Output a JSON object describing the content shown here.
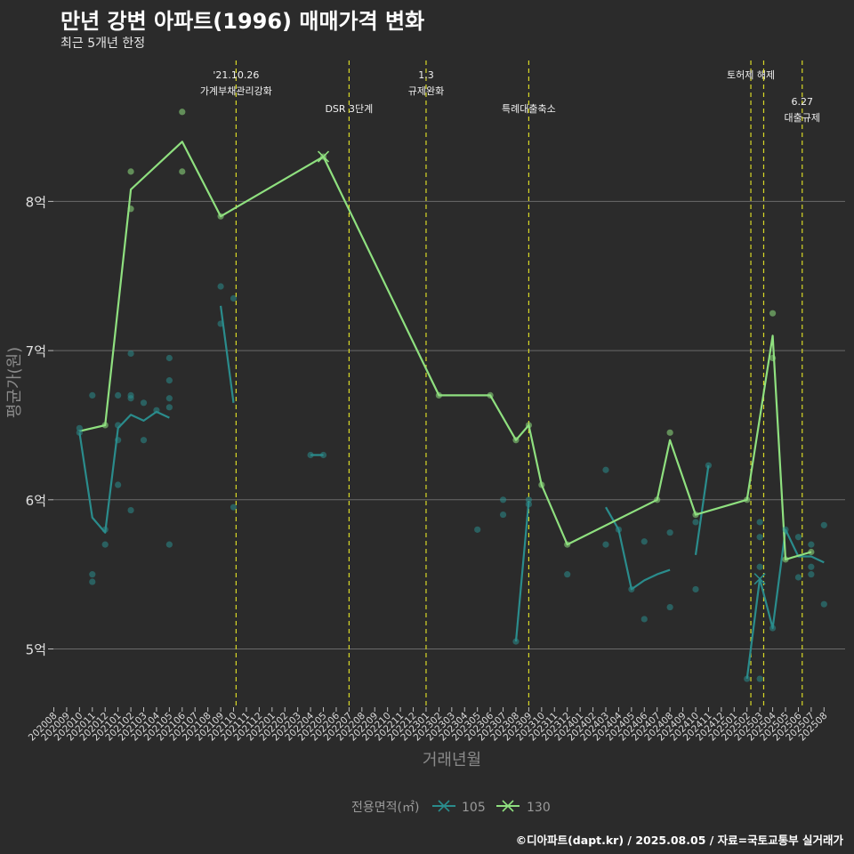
{
  "header": {
    "title": "만년 강변 아파트(1996) 매매가격 변화",
    "subtitle": "최근 5개년 한정"
  },
  "footer": {
    "credit": "©디아파트(dapt.kr) / 2025.08.05 / 자료=국토교통부 실거래가"
  },
  "colors": {
    "background": "#2b2b2b",
    "grid": "#6a6a6a",
    "series_105": "#2a8c8c",
    "series_130": "#8fe07f",
    "event_line": "#d9d926"
  },
  "chart_data": {
    "type": "line",
    "xlabel": "거래년월",
    "ylabel": "평균가(원)",
    "legend_title": "전용면적(㎡)",
    "legend_position": "bottom",
    "grid": true,
    "ylim": [
      4.6,
      8.95
    ],
    "y_ticks": [
      {
        "value": 5,
        "label": "5억"
      },
      {
        "value": 6,
        "label": "6억"
      },
      {
        "value": 7,
        "label": "7억"
      },
      {
        "value": 8,
        "label": "8억"
      }
    ],
    "categories": [
      "202008",
      "202009",
      "202010",
      "202011",
      "202012",
      "202101",
      "202102",
      "202103",
      "202104",
      "202105",
      "202106",
      "202107",
      "202108",
      "202109",
      "202110",
      "202111",
      "202112",
      "202201",
      "202202",
      "202203",
      "202204",
      "202205",
      "202206",
      "202207",
      "202208",
      "202209",
      "202210",
      "202211",
      "202212",
      "202301",
      "202302",
      "202303",
      "202304",
      "202305",
      "202306",
      "202307",
      "202308",
      "202309",
      "202310",
      "202311",
      "202312",
      "202401",
      "202402",
      "202403",
      "202404",
      "202405",
      "202406",
      "202407",
      "202408",
      "202409",
      "202410",
      "202411",
      "202412",
      "202501",
      "202502",
      "202503",
      "202504",
      "202505",
      "202506",
      "202507",
      "202508"
    ],
    "events": [
      {
        "x": "202110.2",
        "label": "'21.10.26\n가계부채관리강화",
        "row": 0
      },
      {
        "x": "202207",
        "label": "DSR 3단계",
        "row": 1
      },
      {
        "x": "202301",
        "label": "1.3\n규제완화",
        "row": 0
      },
      {
        "x": "202309",
        "label": "특례대출축소",
        "row": 1
      },
      {
        "x": "202502.3",
        "label": "토허제 해제",
        "row": 0
      },
      {
        "x": "202503.3",
        "label": "",
        "row": 0
      },
      {
        "x": "202506.3",
        "label": "6.27\n대출규제",
        "row": 2
      }
    ],
    "series": [
      {
        "name": "105",
        "line": [
          [
            "202010",
            6.45
          ],
          [
            "202011",
            5.88
          ],
          [
            "202012",
            5.78
          ],
          [
            "202101",
            6.48
          ],
          [
            "202102",
            6.57
          ],
          [
            "202103",
            6.53
          ],
          [
            "202104",
            6.59
          ],
          [
            "202105",
            6.55
          ],
          null,
          [
            "202109",
            7.3
          ],
          [
            "202110",
            6.65
          ],
          null,
          [
            "202204",
            6.3
          ],
          [
            "202205",
            6.3
          ],
          null,
          [
            "202308",
            5.05
          ],
          [
            "202309",
            5.99
          ],
          null,
          [
            "202403",
            5.95
          ],
          [
            "202404",
            5.8
          ],
          [
            "202405",
            5.4
          ],
          [
            "202406",
            5.46
          ],
          [
            "202407",
            5.5
          ],
          [
            "202408",
            5.53
          ],
          null,
          [
            "202410",
            5.63
          ],
          [
            "202411",
            6.23
          ],
          null,
          [
            "202502",
            4.8
          ],
          [
            "202503",
            5.47
          ],
          [
            "202504",
            5.14
          ],
          [
            "202505",
            5.8
          ],
          [
            "202506",
            5.62
          ],
          [
            "202507",
            5.62
          ],
          [
            "202508",
            5.58
          ]
        ],
        "points": [
          [
            "202010",
            6.48
          ],
          [
            "202010",
            6.45
          ],
          [
            "202011",
            6.7
          ],
          [
            "202011",
            5.5
          ],
          [
            "202011",
            5.45
          ],
          [
            "202012",
            5.8
          ],
          [
            "202012",
            5.7
          ],
          [
            "202101",
            6.7
          ],
          [
            "202101",
            6.5
          ],
          [
            "202101",
            6.4
          ],
          [
            "202101",
            6.1
          ],
          [
            "202102",
            6.98
          ],
          [
            "202102",
            6.7
          ],
          [
            "202102",
            6.68
          ],
          [
            "202102",
            5.93
          ],
          [
            "202103",
            6.65
          ],
          [
            "202103",
            6.4
          ],
          [
            "202104",
            6.6
          ],
          [
            "202105",
            6.95
          ],
          [
            "202105",
            6.8
          ],
          [
            "202105",
            6.68
          ],
          [
            "202105",
            6.62
          ],
          [
            "202105",
            5.7
          ],
          [
            "202109",
            7.43
          ],
          [
            "202109",
            7.18
          ],
          [
            "202110",
            7.35
          ],
          [
            "202110",
            5.95
          ],
          [
            "202204",
            6.3
          ],
          [
            "202205",
            6.3
          ],
          [
            "202305",
            5.8
          ],
          [
            "202307",
            6.0
          ],
          [
            "202307",
            5.9
          ],
          [
            "202308",
            5.05
          ],
          [
            "202309",
            6.0
          ],
          [
            "202309",
            5.97
          ],
          [
            "202312",
            5.5
          ],
          [
            "202403",
            6.2
          ],
          [
            "202403",
            5.7
          ],
          [
            "202404",
            5.8
          ],
          [
            "202405",
            5.4
          ],
          [
            "202406",
            5.72
          ],
          [
            "202406",
            5.2
          ],
          [
            "202408",
            5.78
          ],
          [
            "202408",
            5.28
          ],
          [
            "202410",
            5.85
          ],
          [
            "202410",
            5.4
          ],
          [
            "202411",
            6.23
          ],
          [
            "202502",
            4.8
          ],
          [
            "202503",
            5.85
          ],
          [
            "202503",
            5.75
          ],
          [
            "202503",
            5.55
          ],
          [
            "202503",
            4.8
          ],
          [
            "202504",
            5.14
          ],
          [
            "202505",
            5.8
          ],
          [
            "202506",
            5.75
          ],
          [
            "202506",
            5.48
          ],
          [
            "202507",
            5.7
          ],
          [
            "202507",
            5.55
          ],
          [
            "202507",
            5.5
          ],
          [
            "202508",
            5.83
          ],
          [
            "202508",
            5.3
          ]
        ],
        "markers": [
          [
            "202503",
            5.47
          ]
        ]
      },
      {
        "name": "130",
        "line": [
          [
            "202010",
            6.46
          ],
          [
            "202012",
            6.5
          ],
          [
            "202102",
            8.08
          ],
          [
            "202106",
            8.4
          ],
          [
            "202109",
            7.9
          ],
          [
            "202205",
            8.3
          ],
          [
            "202302",
            6.7
          ],
          [
            "202306",
            6.7
          ],
          [
            "202308",
            6.4
          ],
          [
            "202309",
            6.5
          ],
          [
            "202310",
            6.1
          ],
          [
            "202312",
            5.7
          ],
          [
            "202407",
            6.0
          ],
          [
            "202408",
            6.4
          ],
          [
            "202410",
            5.9
          ],
          [
            "202502",
            6.0
          ],
          [
            "202504",
            7.1
          ],
          [
            "202505",
            5.6
          ],
          [
            "202507",
            5.65
          ]
        ],
        "points": [
          [
            "202012",
            6.5
          ],
          [
            "202102",
            8.2
          ],
          [
            "202102",
            7.95
          ],
          [
            "202106",
            8.6
          ],
          [
            "202106",
            8.2
          ],
          [
            "202109",
            7.9
          ],
          [
            "202205",
            8.3
          ],
          [
            "202302",
            6.7
          ],
          [
            "202306",
            6.7
          ],
          [
            "202308",
            6.4
          ],
          [
            "202309",
            6.5
          ],
          [
            "202310",
            6.1
          ],
          [
            "202312",
            5.7
          ],
          [
            "202407",
            6.0
          ],
          [
            "202408",
            6.45
          ],
          [
            "202410",
            5.9
          ],
          [
            "202502",
            6.0
          ],
          [
            "202504",
            7.25
          ],
          [
            "202504",
            6.95
          ],
          [
            "202505",
            5.6
          ],
          [
            "202507",
            5.65
          ]
        ],
        "markers": [
          [
            "202205",
            8.3
          ]
        ]
      }
    ]
  }
}
